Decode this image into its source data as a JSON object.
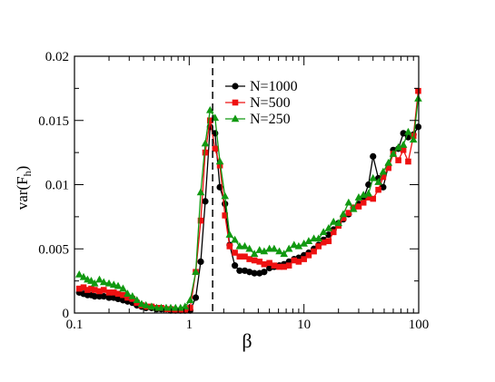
{
  "chart_data": {
    "type": "line",
    "title": "",
    "xlabel": "β",
    "ylabel": {
      "base": "var(F",
      "sub": "h",
      "tail": ")"
    },
    "xscale": "log",
    "xlim": [
      0.1,
      100
    ],
    "ylim": [
      0,
      0.02
    ],
    "x_ticks": [
      {
        "value": 0.1,
        "label": "0.1"
      },
      {
        "value": 1,
        "label": "1"
      },
      {
        "value": 10,
        "label": "10"
      },
      {
        "value": 100,
        "label": "100"
      }
    ],
    "y_ticks": [
      {
        "value": 0,
        "label": "0"
      },
      {
        "value": 0.005,
        "label": "0.005"
      },
      {
        "value": 0.01,
        "label": "0.01"
      },
      {
        "value": 0.015,
        "label": "0.015"
      },
      {
        "value": 0.02,
        "label": "0.02"
      }
    ],
    "reference_line": {
      "x": 1.6,
      "style": "dashed",
      "color": "#000000"
    },
    "grid": false,
    "legend_position": "top-right",
    "series": [
      {
        "name": "N=1000",
        "color": "#000000",
        "marker": "circle",
        "points": [
          [
            0.11,
            0.0016
          ],
          [
            0.12,
            0.0015
          ],
          [
            0.13,
            0.0014
          ],
          [
            0.14,
            0.0014
          ],
          [
            0.15,
            0.0013
          ],
          [
            0.165,
            0.0013
          ],
          [
            0.18,
            0.0013
          ],
          [
            0.2,
            0.0012
          ],
          [
            0.22,
            0.0012
          ],
          [
            0.24,
            0.0011
          ],
          [
            0.265,
            0.001
          ],
          [
            0.29,
            0.0009
          ],
          [
            0.32,
            0.0008
          ],
          [
            0.35,
            0.0006
          ],
          [
            0.385,
            0.0005
          ],
          [
            0.42,
            0.0004
          ],
          [
            0.47,
            0.0004
          ],
          [
            0.52,
            0.0003
          ],
          [
            0.57,
            0.0003
          ],
          [
            0.63,
            0.0003
          ],
          [
            0.69,
            0.0002
          ],
          [
            0.76,
            0.0002
          ],
          [
            0.84,
            0.0002
          ],
          [
            0.92,
            0.0002
          ],
          [
            1.02,
            0.0002
          ],
          [
            1.14,
            0.0012
          ],
          [
            1.26,
            0.004
          ],
          [
            1.38,
            0.0087
          ],
          [
            1.52,
            0.0145
          ],
          [
            1.68,
            0.014
          ],
          [
            1.85,
            0.0098
          ],
          [
            2.05,
            0.0085
          ],
          [
            2.25,
            0.0053
          ],
          [
            2.5,
            0.0037
          ],
          [
            2.75,
            0.0033
          ],
          [
            3.05,
            0.0033
          ],
          [
            3.35,
            0.0032
          ],
          [
            3.7,
            0.0031
          ],
          [
            4.1,
            0.0031
          ],
          [
            4.5,
            0.0032
          ],
          [
            5.0,
            0.0035
          ],
          [
            5.5,
            0.0036
          ],
          [
            6.1,
            0.0037
          ],
          [
            6.7,
            0.0038
          ],
          [
            7.4,
            0.004
          ],
          [
            8.2,
            0.0042
          ],
          [
            9.0,
            0.0043
          ],
          [
            10.0,
            0.0045
          ],
          [
            11.0,
            0.0047
          ],
          [
            12.2,
            0.005
          ],
          [
            13.4,
            0.0053
          ],
          [
            14.8,
            0.0057
          ],
          [
            16.4,
            0.0061
          ],
          [
            18.1,
            0.0065
          ],
          [
            20.0,
            0.007
          ],
          [
            22.0,
            0.0073
          ],
          [
            24.5,
            0.0077
          ],
          [
            27.0,
            0.0082
          ],
          [
            30.0,
            0.0085
          ],
          [
            33.0,
            0.0089
          ],
          [
            36.5,
            0.01
          ],
          [
            40.0,
            0.0122
          ],
          [
            44.5,
            0.0105
          ],
          [
            49.0,
            0.0098
          ],
          [
            54.5,
            0.0115
          ],
          [
            60.0,
            0.0127
          ],
          [
            66.5,
            0.0128
          ],
          [
            73.5,
            0.014
          ],
          [
            81.0,
            0.0137
          ],
          [
            90.0,
            0.0139
          ],
          [
            99.0,
            0.0145
          ]
        ]
      },
      {
        "name": "N=500",
        "color": "#ee1111",
        "marker": "square",
        "points": [
          [
            0.11,
            0.0019
          ],
          [
            0.12,
            0.002
          ],
          [
            0.13,
            0.0018
          ],
          [
            0.14,
            0.0019
          ],
          [
            0.15,
            0.0018
          ],
          [
            0.165,
            0.0017
          ],
          [
            0.18,
            0.0018
          ],
          [
            0.2,
            0.0016
          ],
          [
            0.22,
            0.0016
          ],
          [
            0.24,
            0.0015
          ],
          [
            0.265,
            0.0014
          ],
          [
            0.29,
            0.0012
          ],
          [
            0.32,
            0.0011
          ],
          [
            0.35,
            0.0008
          ],
          [
            0.385,
            0.0006
          ],
          [
            0.42,
            0.0005
          ],
          [
            0.47,
            0.0005
          ],
          [
            0.52,
            0.0004
          ],
          [
            0.57,
            0.0004
          ],
          [
            0.63,
            0.0003
          ],
          [
            0.69,
            0.0003
          ],
          [
            0.76,
            0.0002
          ],
          [
            0.84,
            0.0002
          ],
          [
            0.92,
            0.0002
          ],
          [
            1.02,
            0.0004
          ],
          [
            1.14,
            0.0032
          ],
          [
            1.26,
            0.0072
          ],
          [
            1.38,
            0.0125
          ],
          [
            1.52,
            0.015
          ],
          [
            1.68,
            0.0128
          ],
          [
            1.85,
            0.0115
          ],
          [
            2.05,
            0.0076
          ],
          [
            2.25,
            0.0052
          ],
          [
            2.5,
            0.0047
          ],
          [
            2.75,
            0.0044
          ],
          [
            3.05,
            0.0044
          ],
          [
            3.35,
            0.0042
          ],
          [
            3.7,
            0.0041
          ],
          [
            4.1,
            0.004
          ],
          [
            4.5,
            0.0038
          ],
          [
            5.0,
            0.0039
          ],
          [
            5.5,
            0.0037
          ],
          [
            6.1,
            0.0036
          ],
          [
            6.7,
            0.0036
          ],
          [
            7.4,
            0.0037
          ],
          [
            8.2,
            0.0041
          ],
          [
            9.0,
            0.004
          ],
          [
            10.0,
            0.0042
          ],
          [
            11.0,
            0.0045
          ],
          [
            12.2,
            0.0048
          ],
          [
            13.4,
            0.0052
          ],
          [
            14.8,
            0.0055
          ],
          [
            16.4,
            0.0056
          ],
          [
            18.1,
            0.0063
          ],
          [
            20.0,
            0.0068
          ],
          [
            22.0,
            0.0074
          ],
          [
            24.5,
            0.0078
          ],
          [
            27.0,
            0.0082
          ],
          [
            30.0,
            0.0083
          ],
          [
            33.0,
            0.0086
          ],
          [
            36.5,
            0.009
          ],
          [
            40.0,
            0.0089
          ],
          [
            44.5,
            0.0096
          ],
          [
            49.0,
            0.0106
          ],
          [
            54.5,
            0.0113
          ],
          [
            60.0,
            0.0124
          ],
          [
            66.5,
            0.0119
          ],
          [
            73.5,
            0.0127
          ],
          [
            81.0,
            0.0118
          ],
          [
            90.0,
            0.0138
          ],
          [
            99.0,
            0.0173
          ]
        ]
      },
      {
        "name": "N=250",
        "color": "#119911",
        "marker": "triangle",
        "points": [
          [
            0.11,
            0.003
          ],
          [
            0.12,
            0.0028
          ],
          [
            0.13,
            0.0026
          ],
          [
            0.14,
            0.0025
          ],
          [
            0.15,
            0.0023
          ],
          [
            0.165,
            0.0026
          ],
          [
            0.18,
            0.0024
          ],
          [
            0.2,
            0.0023
          ],
          [
            0.22,
            0.0022
          ],
          [
            0.24,
            0.0021
          ],
          [
            0.265,
            0.0019
          ],
          [
            0.29,
            0.0015
          ],
          [
            0.32,
            0.0013
          ],
          [
            0.35,
            0.001
          ],
          [
            0.385,
            0.0007
          ],
          [
            0.42,
            0.0006
          ],
          [
            0.47,
            0.0005
          ],
          [
            0.52,
            0.0004
          ],
          [
            0.57,
            0.0004
          ],
          [
            0.63,
            0.0004
          ],
          [
            0.69,
            0.0004
          ],
          [
            0.76,
            0.0004
          ],
          [
            0.84,
            0.0004
          ],
          [
            0.92,
            0.0005
          ],
          [
            1.02,
            0.001
          ],
          [
            1.14,
            0.0032
          ],
          [
            1.26,
            0.0094
          ],
          [
            1.38,
            0.0132
          ],
          [
            1.52,
            0.0158
          ],
          [
            1.68,
            0.0152
          ],
          [
            1.85,
            0.0118
          ],
          [
            2.05,
            0.0091
          ],
          [
            2.25,
            0.0061
          ],
          [
            2.5,
            0.0057
          ],
          [
            2.75,
            0.0052
          ],
          [
            3.05,
            0.0052
          ],
          [
            3.35,
            0.005
          ],
          [
            3.7,
            0.0046
          ],
          [
            4.1,
            0.0049
          ],
          [
            4.5,
            0.0048
          ],
          [
            5.0,
            0.005
          ],
          [
            5.5,
            0.005
          ],
          [
            6.1,
            0.0048
          ],
          [
            6.7,
            0.0046
          ],
          [
            7.4,
            0.005
          ],
          [
            8.2,
            0.0053
          ],
          [
            9.0,
            0.0052
          ],
          [
            10.0,
            0.0054
          ],
          [
            11.0,
            0.0056
          ],
          [
            12.2,
            0.0058
          ],
          [
            13.4,
            0.0058
          ],
          [
            14.8,
            0.0063
          ],
          [
            16.4,
            0.0066
          ],
          [
            18.1,
            0.0071
          ],
          [
            20.0,
            0.007
          ],
          [
            22.0,
            0.0077
          ],
          [
            24.5,
            0.0086
          ],
          [
            27.0,
            0.0081
          ],
          [
            30.0,
            0.009
          ],
          [
            33.0,
            0.0092
          ],
          [
            36.5,
            0.0093
          ],
          [
            40.0,
            0.0105
          ],
          [
            44.5,
            0.0102
          ],
          [
            49.0,
            0.011
          ],
          [
            54.5,
            0.0117
          ],
          [
            60.0,
            0.0124
          ],
          [
            66.5,
            0.0129
          ],
          [
            73.5,
            0.0131
          ],
          [
            81.0,
            0.0141
          ],
          [
            90.0,
            0.0135
          ],
          [
            99.0,
            0.0167
          ]
        ]
      }
    ]
  }
}
